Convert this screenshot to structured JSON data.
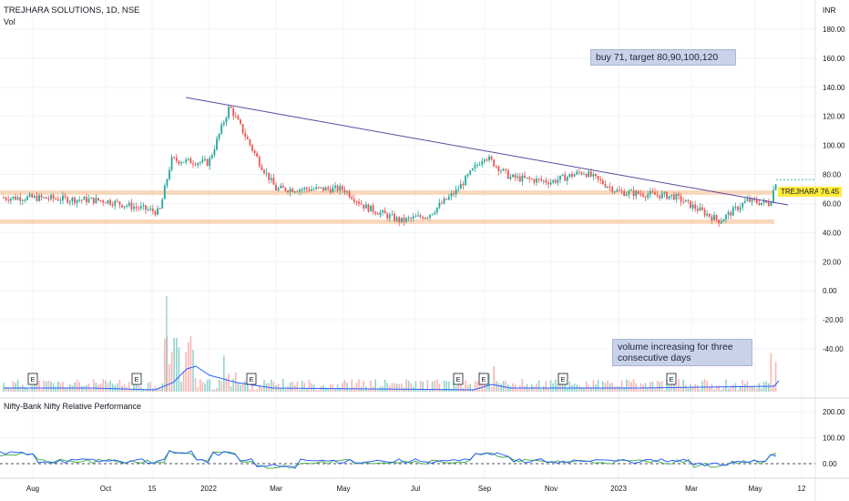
{
  "header": {
    "title": "TREJHARA SOLUTIONS, 1D, NSE",
    "vol": "Vol",
    "currency": "INR"
  },
  "price_axis": [
    "180.00",
    "160.00",
    "140.00",
    "120.00",
    "100.00",
    "80.00",
    "60.00",
    "40.00",
    "20.00",
    "0.00",
    "-20.00",
    "-40.00"
  ],
  "rp_axis": [
    "200.00",
    "100.00",
    "0.00"
  ],
  "time_axis": [
    "Aug",
    "Oct",
    "15",
    "2022",
    "Mar",
    "May",
    "Jul",
    "Sep",
    "Nov",
    "2023",
    "Mar",
    "May",
    "12"
  ],
  "annotations": {
    "buy": "buy 71, target 80,90,100,120",
    "volume_note": "volume increasing for three consecutive days"
  },
  "last_price": {
    "symbol": "TREJHARA",
    "value": "76.45"
  },
  "rp_title": "Nifty-Bank Nifty Relative Performance",
  "earnings_marker": "E",
  "colors": {
    "up": "#26a69a",
    "down": "#ef5350",
    "trend": "#5b4aa0",
    "zone": "#f7c9a4",
    "ma": "#2962ff",
    "rp_green": "#4caf50",
    "rp_blue": "#2962ff",
    "last_bg": "#ffeb3b",
    "grid": "#f0f3fa"
  },
  "chart_data": {
    "type": "candlestick",
    "x_ticks": [
      "Aug",
      "Oct",
      "15",
      "2022",
      "Mar",
      "May",
      "Jul",
      "Sep",
      "Nov",
      "2023",
      "Mar",
      "May",
      "12"
    ],
    "y_range": [
      -40,
      180
    ],
    "close_path": [
      {
        "x": "Aug",
        "y": 64
      },
      {
        "x": "Oct",
        "y": 62
      },
      {
        "x": "15",
        "y": 55
      },
      {
        "x": "2022",
        "y": 88
      },
      {
        "x": "2022-02",
        "y": 127
      },
      {
        "x": "Mar",
        "y": 70
      },
      {
        "x": "May",
        "y": 70
      },
      {
        "x": "Jul",
        "y": 48
      },
      {
        "x": "Sep",
        "y": 93
      },
      {
        "x": "Nov",
        "y": 75
      },
      {
        "x": "2023",
        "y": 68
      },
      {
        "x": "Mar",
        "y": 48
      },
      {
        "x": "May",
        "y": 60
      },
      {
        "x": "12",
        "y": 76.45
      }
    ],
    "zones": [
      {
        "from": 66,
        "to": 69
      },
      {
        "from": 46,
        "to": 49
      }
    ],
    "trendline": [
      {
        "x": "2022-01",
        "y": 133
      },
      {
        "x": "May",
        "y": 60
      }
    ],
    "earnings_dates": [
      "Aug",
      "15",
      "Mar",
      "Sep",
      "Sep",
      "Nov",
      "2023"
    ]
  }
}
